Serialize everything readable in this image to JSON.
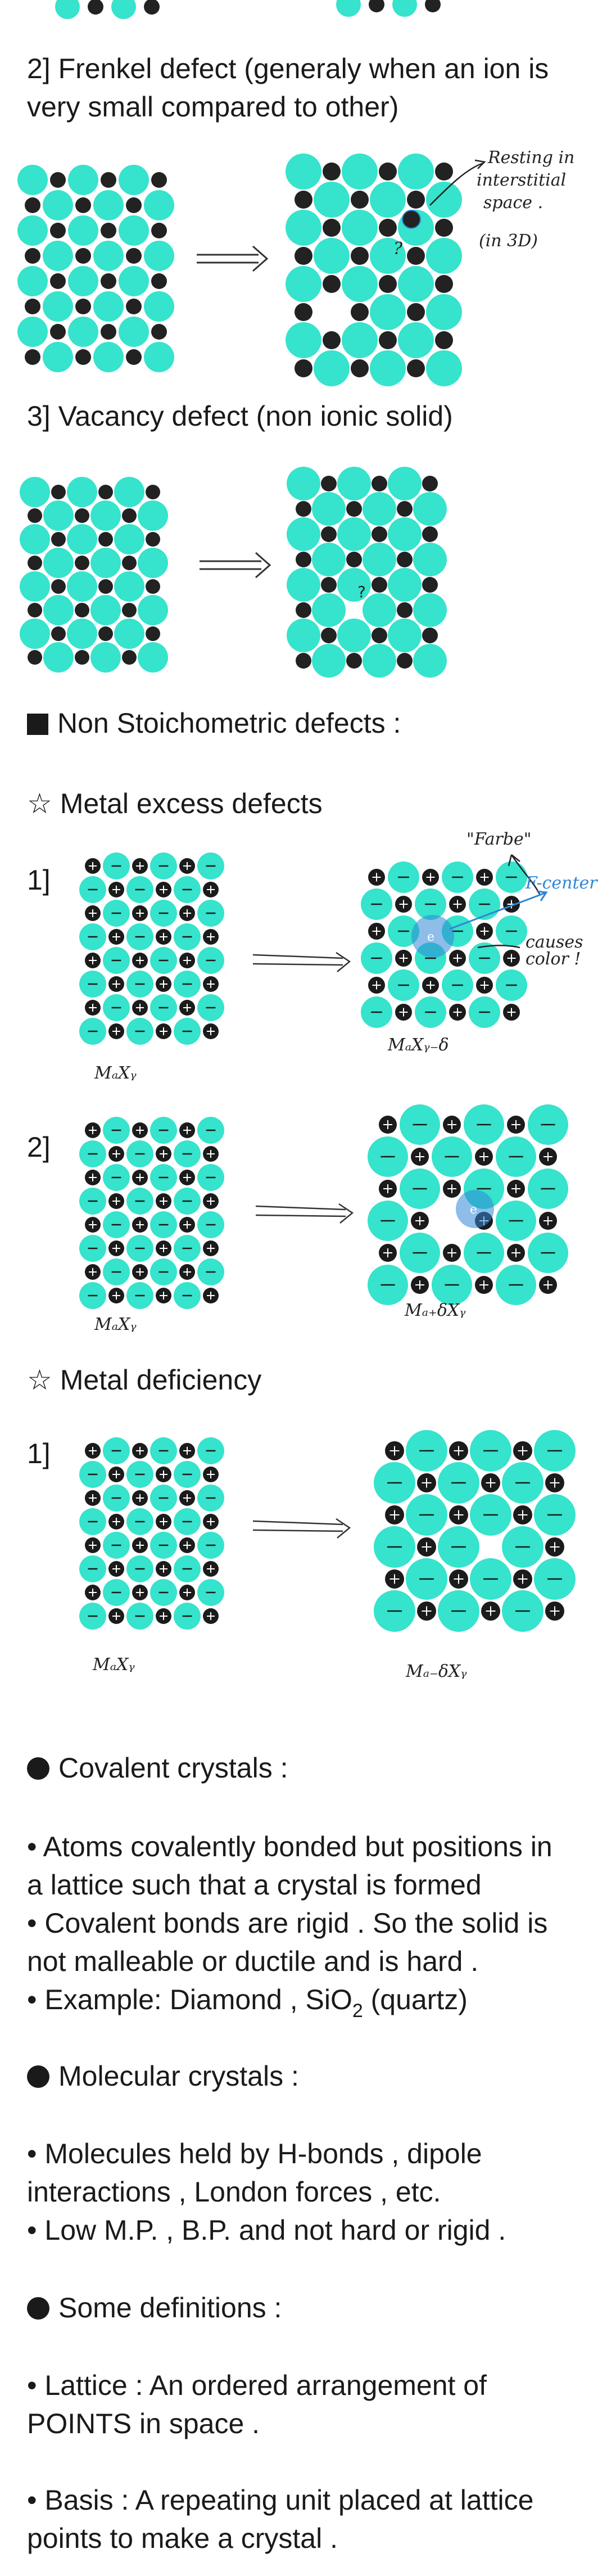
{
  "frenkel": {
    "title": "2] Frenkel defect (generaly when an ion is",
    "title2": "very small compared to other)",
    "notes": [
      "Resting in",
      "interstitial",
      "space .",
      "(in 3D)"
    ],
    "marks": [
      "?"
    ]
  },
  "vacancy": {
    "title": "3] Vacancy defect (non ionic solid)",
    "marks": [
      "?"
    ]
  },
  "nonstoich": {
    "title": "Non Stoichometric defects :",
    "metal_excess": "Metal excess defects",
    "item1": "1]",
    "item2": "2]",
    "farbe": "\"Farbe\"",
    "fcenter": "F-center",
    "causes": [
      "causes",
      "color !"
    ],
    "electron": "e",
    "captions": [
      "MₐXᵧ",
      "MₐXᵧ₋δ",
      "MₐXᵧ",
      "Mₐ₊δXᵧ"
    ],
    "metal_deficiency": "Metal deficiency",
    "item3": "1]",
    "captions2": [
      "MₐXᵧ",
      "Mₐ₋δXᵧ"
    ]
  },
  "covalent": {
    "heading": "Covalent crystals :",
    "b1a": "• Atoms covalently bonded but positions in",
    "b1b": "a lattice such that a crystal is formed",
    "b2a": "• Covalent bonds are rigid . So the solid is",
    "b2b": "not malleable or ductile and is hard .",
    "b3": "• Example:  Diamond , SiO",
    "b3sub": "2",
    "b3end": " (quartz)"
  },
  "molecular": {
    "heading": "Molecular crystals :",
    "b1a": "• Molecules held by H-bonds , dipole",
    "b1b": "interactions , London forces , etc.",
    "b2": "• Low M.P. , B.P. and not hard or rigid ."
  },
  "definitions": {
    "heading": "Some definitions :",
    "d1a": "• Lattice : An ordered arrangement of",
    "d1b": "POINTS in space .",
    "d2a": "• Basis : A repeating unit placed at lattice",
    "d2b": "points to make a crystal ."
  },
  "colors": {
    "cyan": "#36e3cc",
    "dark": "#222222",
    "blue": "#2f86d6"
  }
}
